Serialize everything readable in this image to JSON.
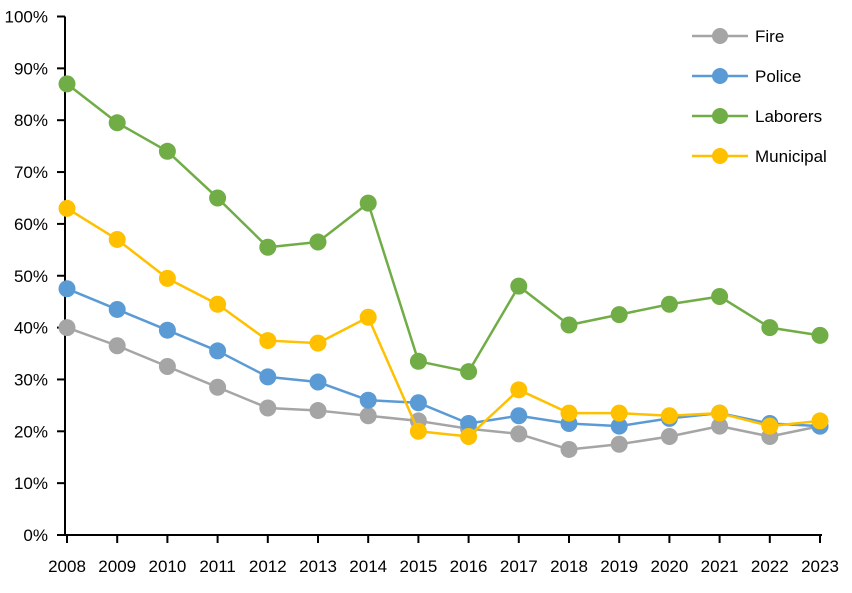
{
  "chart_data": {
    "type": "line",
    "title": "",
    "categories": [
      "2008",
      "2009",
      "2010",
      "2011",
      "2012",
      "2013",
      "2014",
      "2015",
      "2016",
      "2017",
      "2018",
      "2019",
      "2020",
      "2021",
      "2022",
      "2023"
    ],
    "series": [
      {
        "name": "Fire",
        "color": "#A5A5A5",
        "values": [
          40.0,
          36.5,
          32.5,
          28.5,
          24.5,
          24.0,
          23.0,
          22.0,
          20.5,
          19.5,
          16.5,
          17.5,
          19.0,
          21.0,
          19.0,
          21.0
        ]
      },
      {
        "name": "Police",
        "color": "#5B9BD5",
        "values": [
          47.5,
          43.5,
          39.5,
          35.5,
          30.5,
          29.5,
          26.0,
          25.5,
          21.5,
          23.0,
          21.5,
          21.0,
          22.5,
          23.5,
          21.5,
          21.0
        ]
      },
      {
        "name": "Laborers",
        "color": "#70AD47",
        "values": [
          87.0,
          79.5,
          74.0,
          65.0,
          55.5,
          56.5,
          64.0,
          33.5,
          31.5,
          48.0,
          40.5,
          42.5,
          44.5,
          46.0,
          40.0,
          38.5
        ]
      },
      {
        "name": "Municipal",
        "color": "#FFC000",
        "values": [
          63.0,
          57.0,
          49.5,
          44.5,
          37.5,
          37.0,
          42.0,
          20.0,
          19.0,
          28.0,
          23.5,
          23.5,
          23.0,
          23.5,
          21.0,
          22.0
        ]
      }
    ],
    "xlabel": "",
    "ylabel": "",
    "y_axis": {
      "min": 0,
      "max": 100,
      "step": 10,
      "tick_labels": [
        "0%",
        "10%",
        "20%",
        "30%",
        "40%",
        "50%",
        "60%",
        "70%",
        "80%",
        "90%",
        "100%"
      ],
      "format": "percent"
    },
    "x_axis": {
      "tick_labels": [
        "2008",
        "2009",
        "2010",
        "2011",
        "2012",
        "2013",
        "2014",
        "2015",
        "2016",
        "2017",
        "2018",
        "2019",
        "2020",
        "2021",
        "2022",
        "2023"
      ]
    },
    "legend": {
      "position": "top-right",
      "entries": [
        "Fire",
        "Police",
        "Laborers",
        "Municipal"
      ]
    },
    "grid": false,
    "marker": "circle"
  },
  "colors": {
    "axis": "#000000",
    "background": "#FFFFFF"
  }
}
